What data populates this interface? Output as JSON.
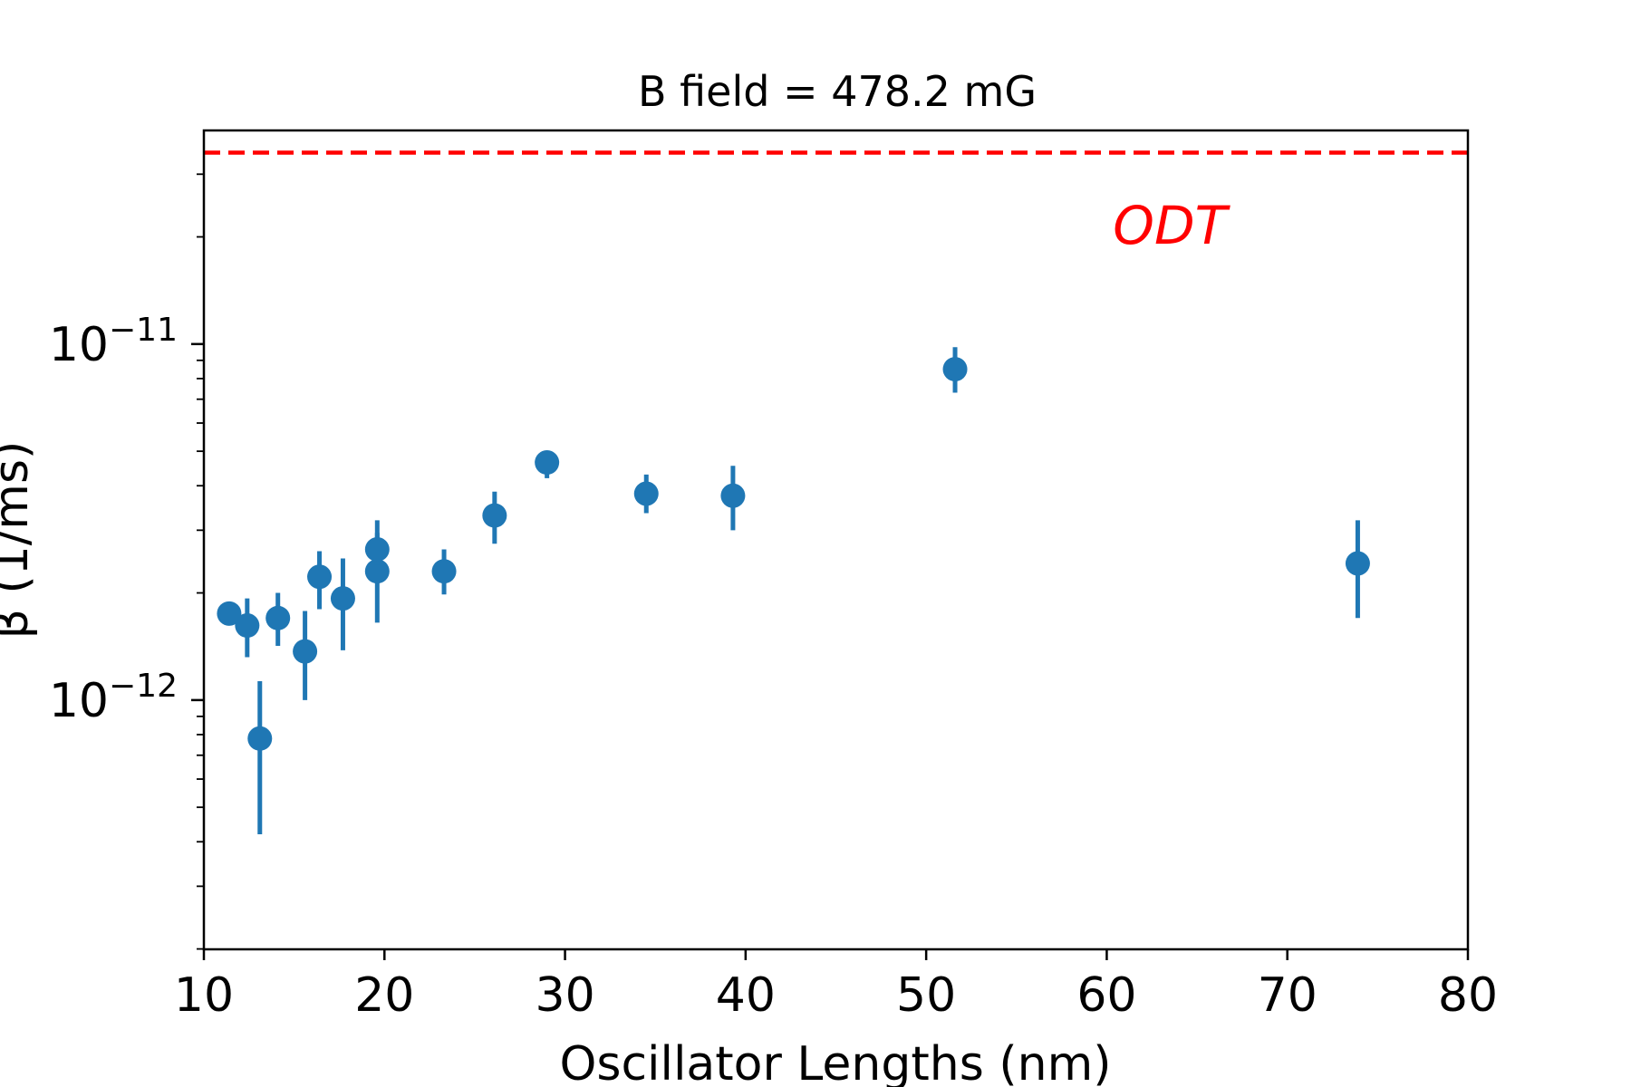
{
  "chart_data": {
    "type": "scatter",
    "title": "B field = 478.2 mG",
    "xlabel": "Oscillator Lengths (nm)",
    "ylabel": "β (1/ms)",
    "xlim": [
      10,
      80
    ],
    "ylim_log10": [
      -12.7,
      -10.4
    ],
    "yscale": "log",
    "grid": false,
    "x_ticks": [
      "10",
      "20",
      "30",
      "40",
      "50",
      "60",
      "70",
      "80"
    ],
    "x_tick_values": [
      10,
      20,
      30,
      40,
      50,
      60,
      70,
      80
    ],
    "y_ticks": [
      {
        "value": 1e-11,
        "base": "10",
        "exp": "−11"
      },
      {
        "value": 1e-12,
        "base": "10",
        "exp": "−12"
      }
    ],
    "series": [
      {
        "color": "#1f77b4",
        "points": [
          {
            "x": 11.4,
            "y": 1.75e-12,
            "ylo": 1.75e-12,
            "yhi": 1.75e-12
          },
          {
            "x": 12.4,
            "y": 1.62e-12,
            "ylo": 1.32e-12,
            "yhi": 1.93e-12
          },
          {
            "x": 13.1,
            "y": 7.8e-13,
            "ylo": 4.2e-13,
            "yhi": 1.13e-12
          },
          {
            "x": 14.1,
            "y": 1.7e-12,
            "ylo": 1.42e-12,
            "yhi": 2e-12
          },
          {
            "x": 15.6,
            "y": 1.37e-12,
            "ylo": 1e-12,
            "yhi": 1.78e-12
          },
          {
            "x": 16.4,
            "y": 2.22e-12,
            "ylo": 1.8e-12,
            "yhi": 2.62e-12
          },
          {
            "x": 17.7,
            "y": 1.93e-12,
            "ylo": 1.38e-12,
            "yhi": 2.5e-12
          },
          {
            "x": 19.6,
            "y": 2.3e-12,
            "ylo": 1.65e-12,
            "yhi": 2.95e-12
          },
          {
            "x": 19.6,
            "y": 2.65e-12,
            "ylo": 2.4e-12,
            "yhi": 3.2e-12
          },
          {
            "x": 23.3,
            "y": 2.3e-12,
            "ylo": 1.98e-12,
            "yhi": 2.65e-12
          },
          {
            "x": 26.1,
            "y": 3.3e-12,
            "ylo": 2.75e-12,
            "yhi": 3.85e-12
          },
          {
            "x": 29.0,
            "y": 4.65e-12,
            "ylo": 4.2e-12,
            "yhi": 5e-12
          },
          {
            "x": 34.5,
            "y": 3.8e-12,
            "ylo": 3.35e-12,
            "yhi": 4.3e-12
          },
          {
            "x": 39.3,
            "y": 3.75e-12,
            "ylo": 3e-12,
            "yhi": 4.55e-12
          },
          {
            "x": 51.6,
            "y": 8.5e-12,
            "ylo": 7.3e-12,
            "yhi": 9.8e-12
          },
          {
            "x": 73.9,
            "y": 2.42e-12,
            "ylo": 1.7e-12,
            "yhi": 3.2e-12
          }
        ]
      }
    ],
    "reference_line": {
      "label": "ODT",
      "y": 3.45e-11,
      "color": "#ff0000",
      "style": "dashed"
    },
    "annotation": {
      "text": "ODT",
      "x": 63.5,
      "y": 2.15e-11,
      "color": "#ff0000"
    }
  }
}
